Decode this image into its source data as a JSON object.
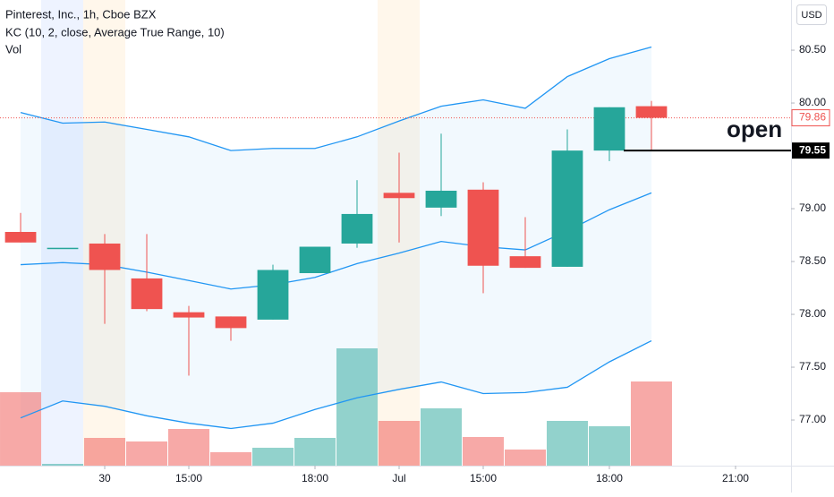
{
  "chart_data": {
    "type": "candlestick",
    "title": "Pinterest, Inc., 1h, Cboe BZX",
    "indicator_title": "KC (10, 2, close, Average True Range, 10)",
    "volume_title": "Vol",
    "currency": "USD",
    "x": [
      0,
      1,
      2,
      3,
      4,
      5,
      6,
      7,
      8,
      9,
      10,
      11,
      12,
      13,
      14,
      15
    ],
    "xlim": [
      -0.49,
      18.32
    ],
    "xticks": [
      {
        "value": 2,
        "label": "30"
      },
      {
        "value": 4,
        "label": "15:00"
      },
      {
        "value": 7,
        "label": "18:00"
      },
      {
        "value": 9,
        "label": "Jul"
      },
      {
        "value": 11,
        "label": "15:00"
      },
      {
        "value": 14,
        "label": "18:00"
      },
      {
        "value": 17,
        "label": "21:00"
      }
    ],
    "ylim": [
      76.568,
      80.975
    ],
    "yticks": [
      {
        "value": 80.5,
        "label": "80.50"
      },
      {
        "value": 80,
        "label": "80.00"
      },
      {
        "value": 79,
        "label": "79.00"
      },
      {
        "value": 78.5,
        "label": "78.50"
      },
      {
        "value": 78,
        "label": "78.00"
      },
      {
        "value": 77.5,
        "label": "77.50"
      },
      {
        "value": 77,
        "label": "77.00"
      }
    ],
    "open": [
      78.78,
      78.63,
      78.67,
      78.34,
      78.02,
      77.98,
      77.95,
      78.39,
      78.67,
      79.15,
      79.01,
      79.18,
      78.55,
      78.45,
      79.55,
      79.97
    ],
    "high": [
      78.96,
      78.63,
      78.76,
      78.76,
      78.08,
      77.98,
      78.47,
      78.64,
      79.27,
      79.53,
      79.71,
      79.25,
      78.92,
      79.75,
      79.96,
      80.02
    ],
    "low": [
      78.68,
      78.63,
      77.91,
      78.03,
      77.42,
      77.75,
      77.95,
      78.39,
      78.63,
      78.68,
      78.93,
      78.2,
      78.44,
      78.45,
      79.45,
      79.55
    ],
    "close": [
      78.68,
      78.63,
      78.42,
      78.05,
      77.97,
      77.87,
      78.42,
      78.64,
      78.95,
      79.1,
      79.17,
      78.46,
      78.44,
      79.55,
      79.96,
      79.86
    ],
    "volume": [
      82,
      2,
      31,
      27,
      41,
      15,
      20,
      31,
      131,
      50,
      64,
      32,
      18,
      50,
      44,
      94
    ],
    "up_color": "#26a69a",
    "down_color": "#ef5350",
    "series": [
      {
        "name": "upper",
        "color": "#2196f3",
        "values": [
          79.91,
          79.81,
          79.82,
          79.75,
          79.68,
          79.55,
          79.57,
          79.57,
          79.68,
          79.83,
          79.97,
          80.03,
          79.95,
          80.25,
          80.42,
          80.53
        ]
      },
      {
        "name": "middle",
        "color": "#2196f3",
        "values": [
          78.47,
          78.49,
          78.47,
          78.4,
          78.32,
          78.24,
          78.28,
          78.35,
          78.48,
          78.58,
          78.69,
          78.64,
          78.61,
          78.79,
          78.99,
          79.15
        ]
      },
      {
        "name": "lower",
        "color": "#2196f3",
        "values": [
          77.02,
          77.18,
          77.13,
          77.04,
          76.97,
          76.92,
          76.97,
          77.1,
          77.21,
          77.29,
          77.36,
          77.25,
          77.26,
          77.31,
          77.55,
          77.75
        ]
      }
    ],
    "last_price": {
      "value": 79.86,
      "label": "79.86"
    },
    "open_price": {
      "value": 79.55,
      "label": "79.55"
    },
    "annotation": "open"
  }
}
